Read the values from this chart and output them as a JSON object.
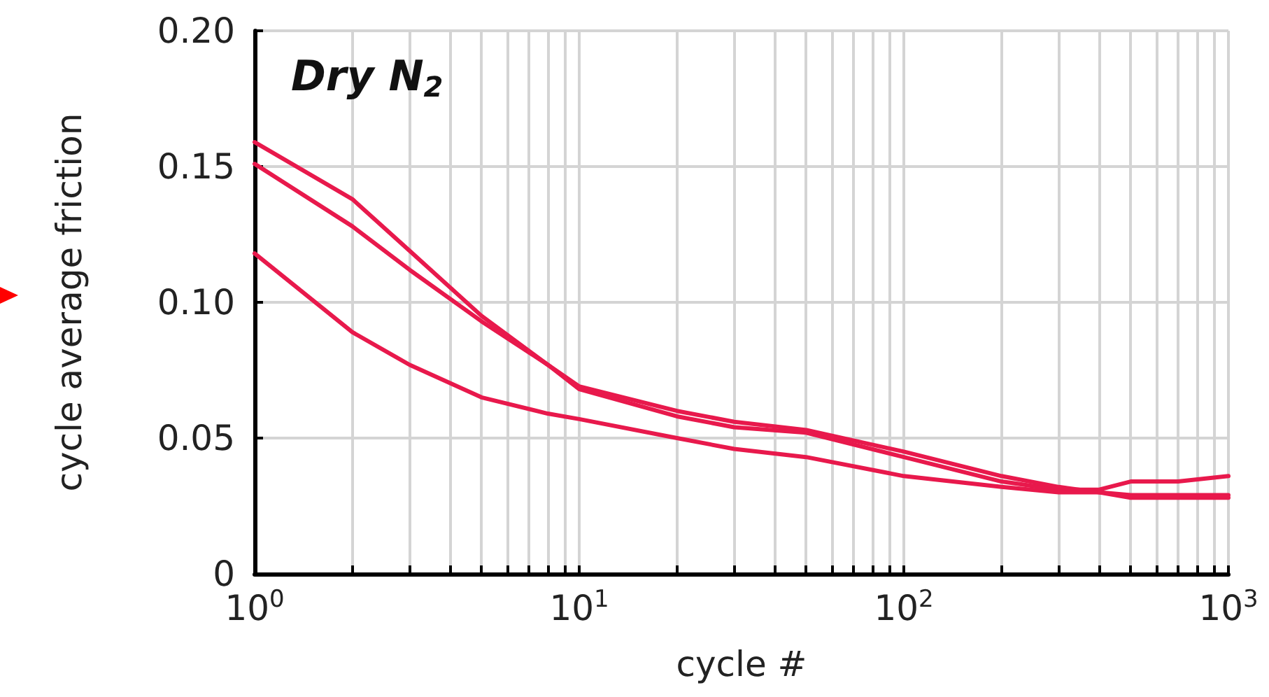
{
  "chart_data": {
    "type": "line",
    "title": "Dry N$_{2}$",
    "xlabel": "cycle #",
    "ylabel": "cycle average friction",
    "log": "x",
    "grid": true,
    "marker": "none",
    "line_style": "solid",
    "xlim": [
      1,
      1000
    ],
    "ylim": [
      0,
      0.2
    ],
    "xticks": [
      {
        "value": 1,
        "label": "10$^{0}$"
      },
      {
        "value": 2,
        "label": null
      },
      {
        "value": 3,
        "label": null
      },
      {
        "value": 4,
        "label": null
      },
      {
        "value": 5,
        "label": null
      },
      {
        "value": 6,
        "label": null
      },
      {
        "value": 7,
        "label": null
      },
      {
        "value": 8,
        "label": null
      },
      {
        "value": 9,
        "label": null
      },
      {
        "value": 10,
        "label": "10$^{1}$"
      },
      {
        "value": 20,
        "label": null
      },
      {
        "value": 30,
        "label": null
      },
      {
        "value": 40,
        "label": null
      },
      {
        "value": 50,
        "label": null
      },
      {
        "value": 60,
        "label": null
      },
      {
        "value": 70,
        "label": null
      },
      {
        "value": 80,
        "label": null
      },
      {
        "value": 90,
        "label": null
      },
      {
        "value": 100,
        "label": "10$^{2}$"
      },
      {
        "value": 200,
        "label": null
      },
      {
        "value": 300,
        "label": null
      },
      {
        "value": 400,
        "label": null
      },
      {
        "value": 500,
        "label": null
      },
      {
        "value": 600,
        "label": null
      },
      {
        "value": 700,
        "label": null
      },
      {
        "value": 800,
        "label": null
      },
      {
        "value": 900,
        "label": null
      },
      {
        "value": 1000,
        "label": "10$^{3}$"
      }
    ],
    "yticks": [
      {
        "value": 0,
        "label": "0"
      },
      0.05,
      {
        "value": 0.1,
        "label": "0.10"
      },
      0.15,
      {
        "value": 0.2,
        "label": "0.20"
      }
    ],
    "x": [
      1,
      2,
      3,
      5,
      8,
      10,
      20,
      30,
      50,
      100,
      200,
      300,
      400,
      500,
      700,
      1000
    ],
    "series": [
      {
        "color": "#e8194c",
        "values": [
          0.159,
          0.138,
          0.119,
          0.095,
          0.077,
          0.068,
          0.058,
          0.054,
          0.052,
          0.043,
          0.034,
          0.031,
          0.031,
          0.034,
          0.034,
          0.036
        ]
      },
      {
        "color": "#e8194c",
        "values": [
          0.151,
          0.128,
          0.112,
          0.093,
          0.077,
          0.069,
          0.06,
          0.056,
          0.053,
          0.045,
          0.036,
          0.032,
          0.03,
          0.028,
          0.028,
          0.028
        ]
      },
      {
        "color": "#e8194c",
        "values": [
          0.118,
          0.089,
          0.077,
          0.065,
          0.059,
          0.057,
          0.05,
          0.046,
          0.043,
          0.036,
          0.032,
          0.03,
          0.03,
          0.029,
          0.029,
          0.029
        ]
      }
    ]
  }
}
